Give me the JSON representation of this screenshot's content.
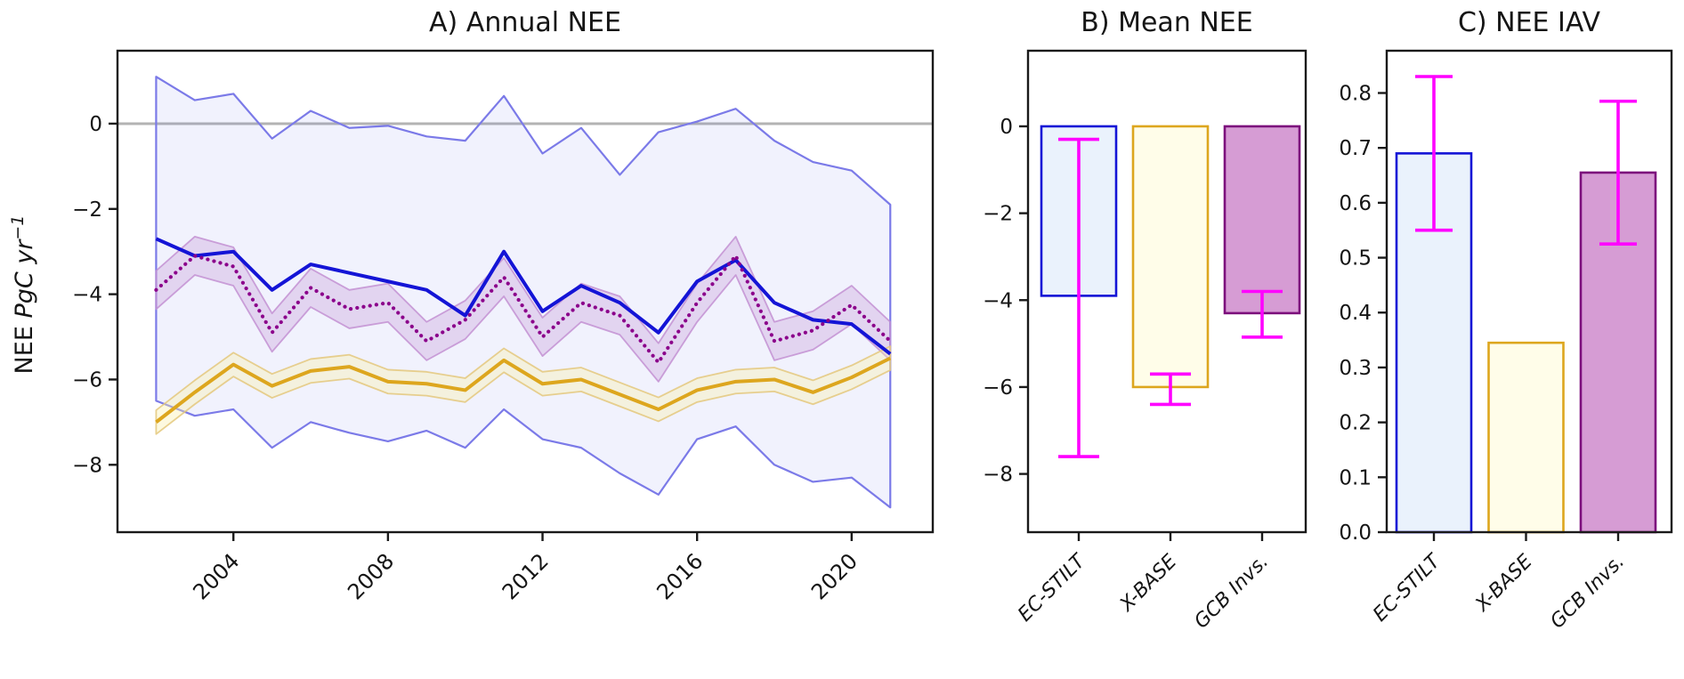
{
  "figure": {
    "background": "#ffffff",
    "ylabel": {
      "prefix": "NEE ",
      "math": "PgC yr",
      "sup": "−1"
    }
  },
  "colors": {
    "axis": "#1a1a1a",
    "zero_line": "#b3b3b3",
    "ec_stilt_line": "#1414d6",
    "ensemble_edge": "#7b7ae8",
    "ensemble_fill": "rgba(120,130,232,0.10)",
    "x_base_line": "#dda61e",
    "x_base_band_fill": "rgba(250,240,170,0.38)",
    "x_base_band_edge": "rgba(228,200,125,0.85)",
    "gcb_line": "#8b008b",
    "gcb_band_fill": "rgba(170,95,190,0.20)",
    "gcb_band_edge": "rgba(195,145,210,0.85)",
    "error_bar": "#ff00ff",
    "bar_fills": [
      "#eaf2fc",
      "#fffde9",
      "#d69cd4"
    ],
    "bar_edges": [
      "#1414d6",
      "#dda61e",
      "#7c0d7c"
    ]
  },
  "chart_data": [
    {
      "type": "line",
      "panel": "A",
      "title": "A) Annual NEE",
      "ylabel": "NEE PgC yr⁻¹",
      "x": [
        2002,
        2003,
        2004,
        2005,
        2006,
        2007,
        2008,
        2009,
        2010,
        2011,
        2012,
        2013,
        2014,
        2015,
        2016,
        2017,
        2018,
        2019,
        2020,
        2021
      ],
      "xtick_labels": [
        "2004",
        "2008",
        "2012",
        "2016",
        "2020"
      ],
      "xtick_values": [
        2004,
        2008,
        2012,
        2016,
        2020
      ],
      "ytick_labels": [
        "0",
        "−2",
        "−4",
        "−6",
        "−8"
      ],
      "ytick_values": [
        0,
        -2,
        -4,
        -6,
        -8
      ],
      "xlim": [
        2001.0,
        2022.1
      ],
      "ylim": [
        1.71,
        -9.58
      ],
      "grid": false,
      "zero_line": 0,
      "series": [
        {
          "name": "EC-STILT ensemble max",
          "role": "envelope-top",
          "values": [
            1.1,
            0.55,
            0.7,
            -0.35,
            0.3,
            -0.1,
            -0.05,
            -0.3,
            -0.4,
            0.65,
            -0.7,
            -0.1,
            -1.2,
            -0.2,
            0.05,
            0.35,
            -0.4,
            -0.9,
            -1.1,
            -1.9
          ]
        },
        {
          "name": "EC-STILT ensemble min",
          "role": "envelope-bottom",
          "values": [
            -6.5,
            -6.85,
            -6.7,
            -7.6,
            -7.0,
            -7.25,
            -7.45,
            -7.2,
            -7.6,
            -6.7,
            -7.4,
            -7.6,
            -8.2,
            -8.7,
            -7.4,
            -7.1,
            -8.0,
            -8.4,
            -8.3,
            -9.0
          ]
        },
        {
          "name": "EC-STILT",
          "role": "mean-line",
          "style": "solid",
          "band_halfwidth": 0,
          "values": [
            -2.7,
            -3.1,
            -3.0,
            -3.9,
            -3.3,
            -3.5,
            -3.7,
            -3.9,
            -4.5,
            -3.0,
            -4.4,
            -3.8,
            -4.2,
            -4.9,
            -3.7,
            -3.2,
            -4.2,
            -4.6,
            -4.7,
            -5.4
          ]
        },
        {
          "name": "X-BASE",
          "role": "mean-line",
          "style": "solid",
          "band_halfwidth": 0.28,
          "values": [
            -7.0,
            -6.3,
            -5.65,
            -6.15,
            -5.8,
            -5.7,
            -6.05,
            -6.1,
            -6.25,
            -5.55,
            -6.1,
            -6.0,
            -6.35,
            -6.7,
            -6.25,
            -6.05,
            -6.0,
            -6.3,
            -5.95,
            -5.5
          ]
        },
        {
          "name": "GCB Invs.",
          "role": "mean-line",
          "style": "dotted",
          "band_halfwidth": 0.45,
          "values": [
            -3.9,
            -3.1,
            -3.35,
            -4.9,
            -3.85,
            -4.35,
            -4.2,
            -5.1,
            -4.6,
            -3.6,
            -5.0,
            -4.2,
            -4.5,
            -5.6,
            -4.2,
            -3.1,
            -5.1,
            -4.85,
            -4.25,
            -5.1
          ]
        }
      ]
    },
    {
      "type": "bar",
      "panel": "B",
      "title": "B) Mean NEE",
      "categories": [
        "EC-STILT",
        "X-BASE",
        "GCB Invs."
      ],
      "values": [
        -3.9,
        -6.0,
        -4.3
      ],
      "error_high": [
        -0.3,
        -5.7,
        -3.8
      ],
      "error_low": [
        -7.6,
        -6.4,
        -4.85
      ],
      "ytick_labels": [
        "0",
        "−2",
        "−4",
        "−6",
        "−8"
      ],
      "ytick_values": [
        0,
        -2,
        -4,
        -6,
        -8
      ],
      "ylim": [
        1.74,
        -9.34
      ],
      "grid": false
    },
    {
      "type": "bar",
      "panel": "C",
      "title": "C) NEE IAV",
      "categories": [
        "EC-STILT",
        "X-BASE",
        "GCB Invs."
      ],
      "values": [
        0.69,
        0.345,
        0.655
      ],
      "error_high": [
        0.83,
        null,
        0.785
      ],
      "error_low": [
        0.55,
        null,
        0.525
      ],
      "ytick_labels": [
        "0.0",
        "0.1",
        "0.2",
        "0.3",
        "0.4",
        "0.5",
        "0.6",
        "0.7",
        "0.8"
      ],
      "ytick_values": [
        0.0,
        0.1,
        0.2,
        0.3,
        0.4,
        0.5,
        0.6,
        0.7,
        0.8
      ],
      "ylim": [
        0.877,
        0.0
      ],
      "grid": false
    }
  ]
}
